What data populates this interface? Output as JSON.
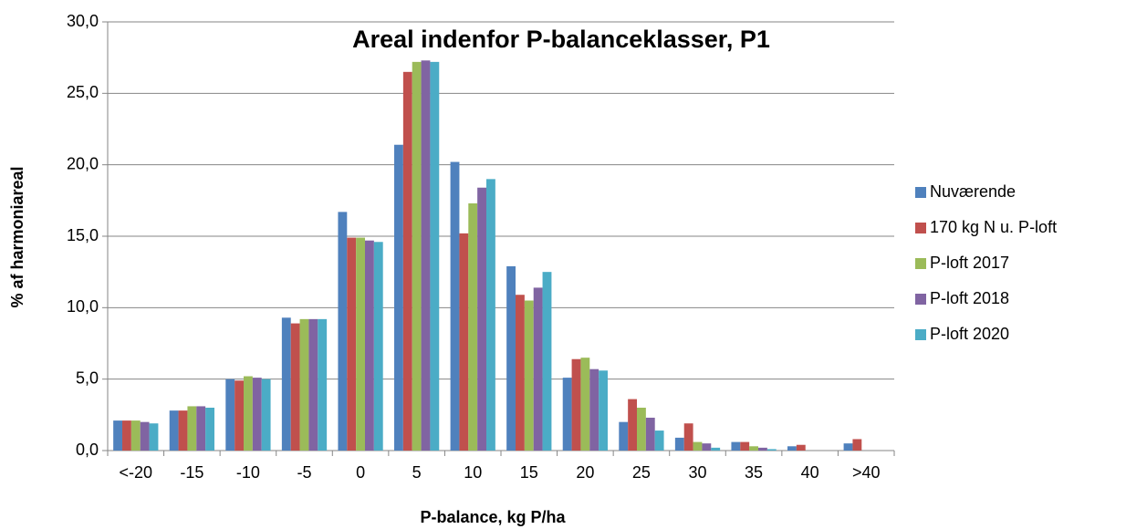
{
  "chart_data": {
    "type": "bar",
    "title": "Areal indenfor P-balanceklasser, P1",
    "x_label": "P-balance, kg P/ha",
    "y_label": "% af harmoniareal",
    "categories": [
      "<-20",
      "-15",
      "-10",
      "-5",
      "0",
      "5",
      "10",
      "15",
      "20",
      "25",
      "30",
      "35",
      "40",
      ">40"
    ],
    "series": [
      {
        "name": "Nuværende",
        "color": "#4f81bd",
        "values": [
          2.1,
          2.8,
          5.0,
          9.3,
          16.7,
          21.4,
          20.2,
          12.9,
          5.1,
          2.0,
          0.9,
          0.6,
          0.3,
          0.5
        ]
      },
      {
        "name": "170 kg N u. P-loft",
        "color": "#c0504d",
        "values": [
          2.1,
          2.8,
          4.9,
          8.9,
          14.9,
          26.5,
          15.2,
          10.9,
          6.4,
          3.6,
          1.9,
          0.6,
          0.4,
          0.8
        ]
      },
      {
        "name": "P-loft 2017",
        "color": "#9bbb59",
        "values": [
          2.1,
          3.1,
          5.2,
          9.2,
          14.9,
          27.2,
          17.3,
          10.5,
          6.5,
          3.0,
          0.6,
          0.3,
          0,
          0
        ]
      },
      {
        "name": "P-loft 2018",
        "color": "#8064a2",
        "values": [
          2.0,
          3.1,
          5.1,
          9.2,
          14.7,
          27.3,
          18.4,
          11.4,
          5.7,
          2.3,
          0.5,
          0.2,
          0,
          0
        ]
      },
      {
        "name": "P-loft 2020",
        "color": "#4bacc6",
        "values": [
          1.9,
          3.0,
          5.0,
          9.2,
          14.6,
          27.2,
          19.0,
          12.5,
          5.6,
          1.4,
          0.2,
          0.1,
          0,
          0
        ]
      }
    ],
    "ylim": [
      0,
      30
    ],
    "yticks": [
      {
        "value": 0,
        "label": "0,0"
      },
      {
        "value": 5,
        "label": "5,0"
      },
      {
        "value": 10,
        "label": "10,0"
      },
      {
        "value": 15,
        "label": "15,0"
      },
      {
        "value": 20,
        "label": "20,0"
      },
      {
        "value": 25,
        "label": "25,0"
      },
      {
        "value": 30,
        "label": "30,0"
      }
    ],
    "grid": true,
    "legend": "right"
  }
}
